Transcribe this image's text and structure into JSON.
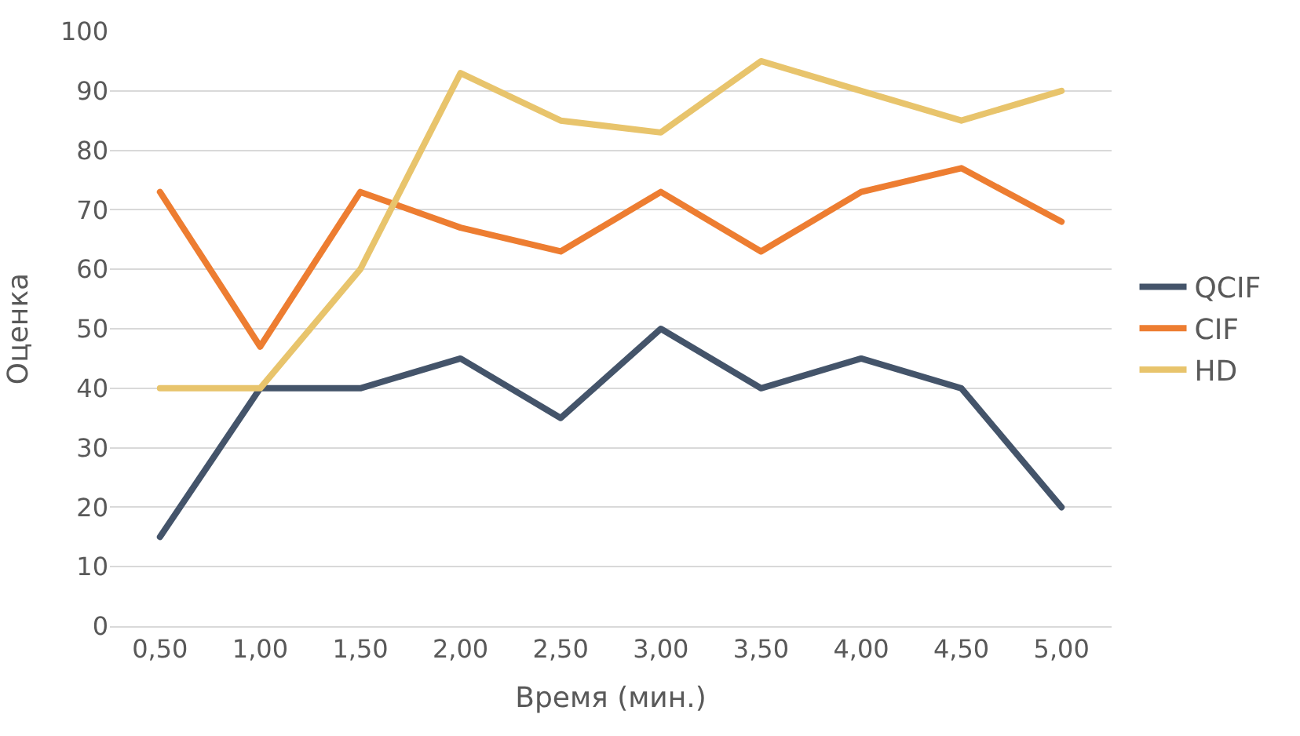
{
  "chart_data": {
    "type": "line",
    "xlabel": "Время (мин.)",
    "ylabel": "Оценка",
    "categories": [
      "0,50",
      "1,00",
      "1,50",
      "2,00",
      "2,50",
      "3,00",
      "3,50",
      "4,00",
      "4,50",
      "5,00"
    ],
    "series": [
      {
        "name": "QCIF",
        "color": "#44546a",
        "values": [
          15,
          40,
          40,
          45,
          35,
          50,
          40,
          45,
          40,
          20
        ]
      },
      {
        "name": "CIF",
        "color": "#ed7d31",
        "values": [
          73,
          47,
          73,
          67,
          63,
          73,
          63,
          73,
          77,
          68
        ]
      },
      {
        "name": "HD",
        "color": "#e8c46c",
        "values": [
          40,
          40,
          60,
          93,
          85,
          83,
          95,
          90,
          85,
          90
        ]
      }
    ],
    "ylim": [
      0,
      100
    ],
    "yticks": [
      0,
      10,
      20,
      30,
      40,
      50,
      60,
      70,
      80,
      90,
      100
    ],
    "grid": "y",
    "legend": "right",
    "marker": "none",
    "line_style": "solid"
  }
}
